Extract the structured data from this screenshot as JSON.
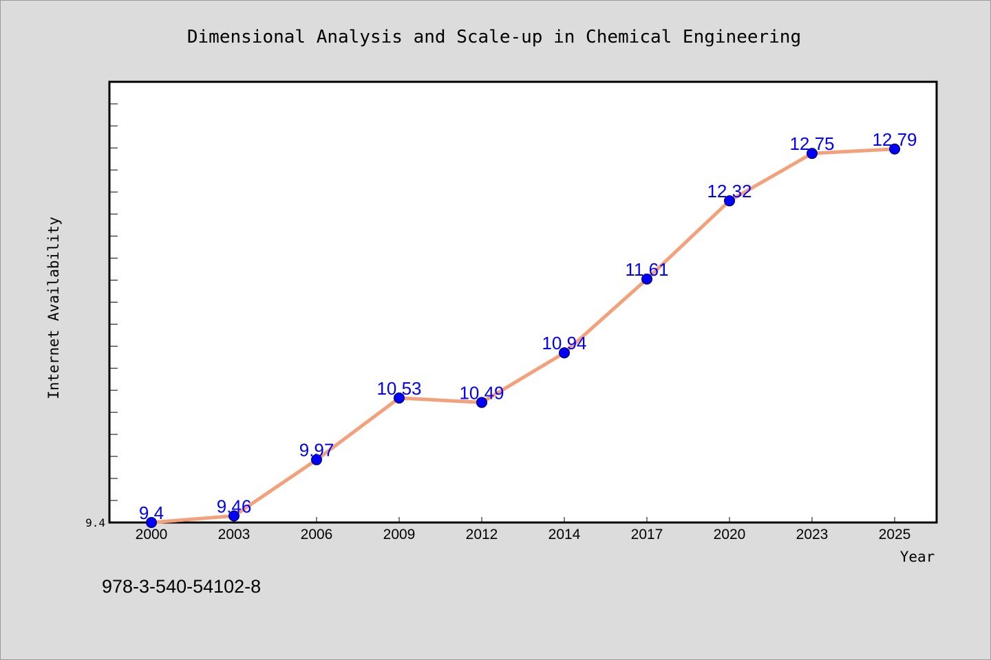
{
  "chart_data": {
    "type": "line",
    "title": "Dimensional Analysis and Scale-up in Chemical Engineering",
    "xlabel": "Year",
    "ylabel": "Internet Availability",
    "categories": [
      "2000",
      "2003",
      "2006",
      "2009",
      "2012",
      "2014",
      "2017",
      "2020",
      "2023",
      "2025"
    ],
    "values": [
      9.4,
      9.46,
      9.97,
      10.53,
      10.49,
      10.94,
      11.61,
      12.32,
      12.75,
      12.79
    ],
    "data_labels": [
      "9.4",
      "9.46",
      "9.97",
      "10.53",
      "10.49",
      "10.94",
      "11.61",
      "12.32",
      "12.75",
      "12.79"
    ],
    "y_tick_labels": [
      "9.4"
    ],
    "ylim": [
      9.4,
      13.4
    ],
    "grid": false,
    "legend": "none",
    "line_color": "#f4a07a",
    "marker_color": "#0000ff",
    "label_color": "#0000ff"
  },
  "footer": {
    "text": "978-3-540-54102-8"
  }
}
